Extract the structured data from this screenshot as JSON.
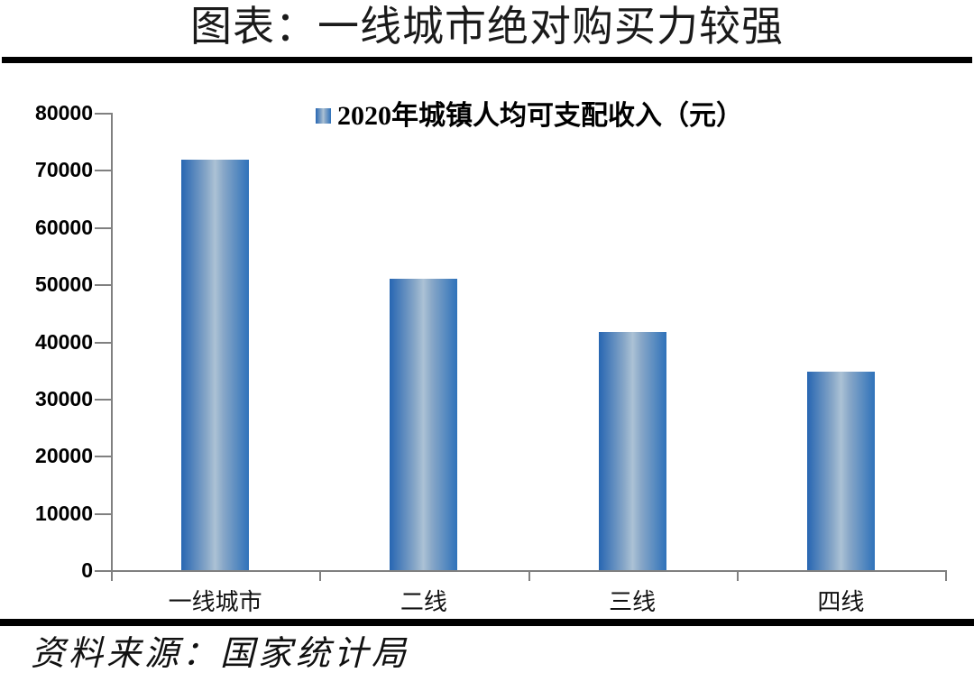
{
  "header": {
    "title": "图表：一线城市绝对购买力较强"
  },
  "chart_data": {
    "type": "bar",
    "title": "图表：一线城市绝对购买力较强",
    "legend": [
      "2020年城镇人均可支配收入（元）"
    ],
    "legend_position": "top-center",
    "categories": [
      "一线城市",
      "二线",
      "三线",
      "四线"
    ],
    "values": [
      71800,
      50900,
      41600,
      34700
    ],
    "xlabel": "",
    "ylabel": "",
    "ylim": [
      0,
      80000
    ],
    "yticks": [
      0,
      10000,
      20000,
      30000,
      40000,
      50000,
      60000,
      70000,
      80000
    ],
    "grid": false,
    "bar_gradient": [
      "#2766B2",
      "#ACC2D5",
      "#2F72BA"
    ],
    "axis_color": "#808080",
    "rule_color": "#000000"
  },
  "footer": {
    "source": "资料来源：国家统计局"
  }
}
